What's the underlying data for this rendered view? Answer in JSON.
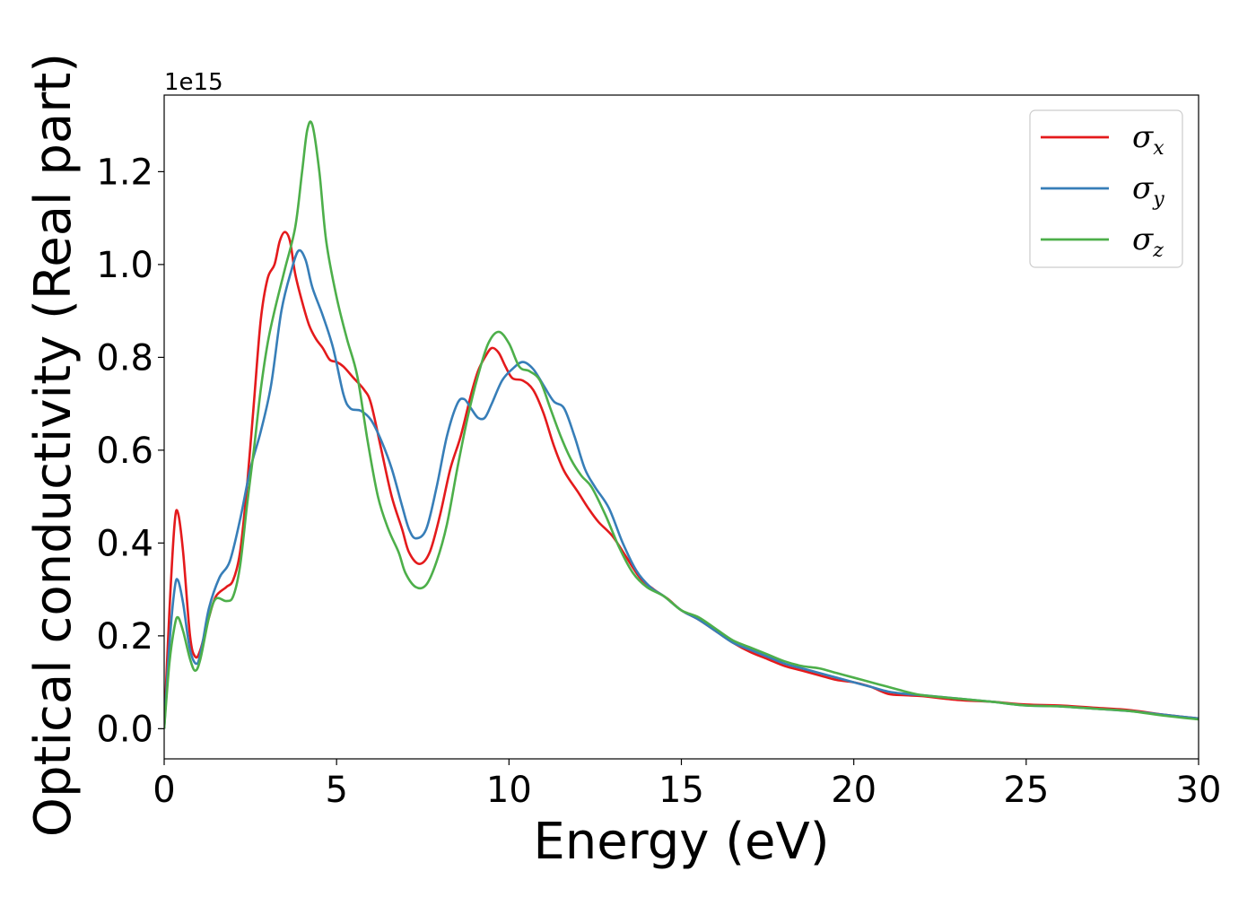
{
  "chart_data": {
    "type": "line",
    "title": "",
    "xlabel": "Energy (eV)",
    "ylabel": "Optical conductivity (Real part)",
    "y_offset_label": "1e15",
    "xlim": [
      0,
      30
    ],
    "ylim": [
      -0.065,
      1.365
    ],
    "x_ticks": [
      0,
      5,
      10,
      15,
      20,
      25,
      30
    ],
    "x_tick_labels": [
      "0",
      "5",
      "10",
      "15",
      "20",
      "25",
      "30"
    ],
    "y_ticks": [
      0.0,
      0.2,
      0.4,
      0.6,
      0.8,
      1.0,
      1.2
    ],
    "y_tick_labels": [
      "0.0",
      "0.2",
      "0.4",
      "0.6",
      "0.8",
      "1.0",
      "1.2"
    ],
    "grid": false,
    "legend_position": "top-right",
    "series": [
      {
        "name": "σx",
        "legend_base": "σ",
        "legend_sub": "x",
        "color": "#e41a1c",
        "points": [
          [
            0,
            0.0
          ],
          [
            0.15,
            0.25
          ],
          [
            0.3,
            0.44
          ],
          [
            0.4,
            0.465
          ],
          [
            0.55,
            0.38
          ],
          [
            0.75,
            0.2
          ],
          [
            0.9,
            0.155
          ],
          [
            1.05,
            0.17
          ],
          [
            1.3,
            0.24
          ],
          [
            1.5,
            0.285
          ],
          [
            1.8,
            0.305
          ],
          [
            2.0,
            0.32
          ],
          [
            2.2,
            0.38
          ],
          [
            2.4,
            0.52
          ],
          [
            2.6,
            0.7
          ],
          [
            2.8,
            0.88
          ],
          [
            3.0,
            0.97
          ],
          [
            3.2,
            1.0
          ],
          [
            3.35,
            1.05
          ],
          [
            3.5,
            1.07
          ],
          [
            3.65,
            1.05
          ],
          [
            3.8,
            0.98
          ],
          [
            4.0,
            0.92
          ],
          [
            4.2,
            0.87
          ],
          [
            4.4,
            0.84
          ],
          [
            4.6,
            0.82
          ],
          [
            4.8,
            0.795
          ],
          [
            5.0,
            0.79
          ],
          [
            5.2,
            0.78
          ],
          [
            5.5,
            0.755
          ],
          [
            5.8,
            0.73
          ],
          [
            6.0,
            0.7
          ],
          [
            6.3,
            0.6
          ],
          [
            6.6,
            0.5
          ],
          [
            6.9,
            0.43
          ],
          [
            7.1,
            0.38
          ],
          [
            7.4,
            0.355
          ],
          [
            7.7,
            0.38
          ],
          [
            8.0,
            0.46
          ],
          [
            8.3,
            0.56
          ],
          [
            8.6,
            0.63
          ],
          [
            8.9,
            0.72
          ],
          [
            9.1,
            0.77
          ],
          [
            9.3,
            0.8
          ],
          [
            9.5,
            0.82
          ],
          [
            9.7,
            0.81
          ],
          [
            9.9,
            0.78
          ],
          [
            10.1,
            0.755
          ],
          [
            10.4,
            0.75
          ],
          [
            10.7,
            0.73
          ],
          [
            11.0,
            0.68
          ],
          [
            11.3,
            0.61
          ],
          [
            11.6,
            0.555
          ],
          [
            12.0,
            0.51
          ],
          [
            12.3,
            0.475
          ],
          [
            12.6,
            0.445
          ],
          [
            13.0,
            0.415
          ],
          [
            13.4,
            0.37
          ],
          [
            13.8,
            0.325
          ],
          [
            14.2,
            0.3
          ],
          [
            14.6,
            0.28
          ],
          [
            15.0,
            0.255
          ],
          [
            15.5,
            0.235
          ],
          [
            16.0,
            0.21
          ],
          [
            16.5,
            0.185
          ],
          [
            17.0,
            0.165
          ],
          [
            17.5,
            0.15
          ],
          [
            18.0,
            0.135
          ],
          [
            18.5,
            0.125
          ],
          [
            19.0,
            0.115
          ],
          [
            19.5,
            0.105
          ],
          [
            20.0,
            0.1
          ],
          [
            20.5,
            0.09
          ],
          [
            21.0,
            0.075
          ],
          [
            21.5,
            0.072
          ],
          [
            22.0,
            0.07
          ],
          [
            23.0,
            0.062
          ],
          [
            24.0,
            0.058
          ],
          [
            25.0,
            0.052
          ],
          [
            26.0,
            0.05
          ],
          [
            27.0,
            0.045
          ],
          [
            28.0,
            0.04
          ],
          [
            29.0,
            0.03
          ],
          [
            30.0,
            0.022
          ]
        ]
      },
      {
        "name": "σy",
        "legend_base": "σ",
        "legend_sub": "y",
        "color": "#377eb8",
        "points": [
          [
            0,
            0.0
          ],
          [
            0.15,
            0.18
          ],
          [
            0.3,
            0.3
          ],
          [
            0.4,
            0.32
          ],
          [
            0.55,
            0.27
          ],
          [
            0.75,
            0.17
          ],
          [
            0.95,
            0.14
          ],
          [
            1.1,
            0.18
          ],
          [
            1.3,
            0.26
          ],
          [
            1.6,
            0.325
          ],
          [
            1.9,
            0.36
          ],
          [
            2.2,
            0.45
          ],
          [
            2.5,
            0.56
          ],
          [
            2.8,
            0.64
          ],
          [
            3.1,
            0.74
          ],
          [
            3.4,
            0.9
          ],
          [
            3.7,
            0.99
          ],
          [
            3.9,
            1.03
          ],
          [
            4.1,
            1.01
          ],
          [
            4.3,
            0.95
          ],
          [
            4.6,
            0.89
          ],
          [
            4.9,
            0.82
          ],
          [
            5.2,
            0.72
          ],
          [
            5.4,
            0.69
          ],
          [
            5.7,
            0.685
          ],
          [
            6.0,
            0.665
          ],
          [
            6.3,
            0.62
          ],
          [
            6.6,
            0.56
          ],
          [
            6.9,
            0.48
          ],
          [
            7.1,
            0.43
          ],
          [
            7.3,
            0.41
          ],
          [
            7.6,
            0.43
          ],
          [
            7.9,
            0.52
          ],
          [
            8.2,
            0.63
          ],
          [
            8.5,
            0.7
          ],
          [
            8.7,
            0.71
          ],
          [
            8.9,
            0.69
          ],
          [
            9.1,
            0.67
          ],
          [
            9.3,
            0.67
          ],
          [
            9.5,
            0.7
          ],
          [
            9.8,
            0.75
          ],
          [
            10.1,
            0.775
          ],
          [
            10.4,
            0.79
          ],
          [
            10.7,
            0.775
          ],
          [
            11.0,
            0.74
          ],
          [
            11.3,
            0.705
          ],
          [
            11.6,
            0.69
          ],
          [
            11.9,
            0.63
          ],
          [
            12.2,
            0.56
          ],
          [
            12.5,
            0.52
          ],
          [
            12.9,
            0.475
          ],
          [
            13.3,
            0.4
          ],
          [
            13.7,
            0.34
          ],
          [
            14.1,
            0.305
          ],
          [
            14.5,
            0.285
          ],
          [
            15.0,
            0.255
          ],
          [
            15.5,
            0.235
          ],
          [
            16.0,
            0.21
          ],
          [
            16.5,
            0.185
          ],
          [
            17.0,
            0.17
          ],
          [
            17.5,
            0.155
          ],
          [
            18.0,
            0.14
          ],
          [
            18.5,
            0.13
          ],
          [
            19.0,
            0.12
          ],
          [
            19.5,
            0.11
          ],
          [
            20.0,
            0.1
          ],
          [
            20.5,
            0.09
          ],
          [
            21.0,
            0.08
          ],
          [
            21.5,
            0.075
          ],
          [
            22.0,
            0.072
          ],
          [
            23.0,
            0.065
          ],
          [
            24.0,
            0.058
          ],
          [
            25.0,
            0.05
          ],
          [
            26.0,
            0.048
          ],
          [
            27.0,
            0.043
          ],
          [
            28.0,
            0.038
          ],
          [
            29.0,
            0.03
          ],
          [
            30.0,
            0.022
          ]
        ]
      },
      {
        "name": "σz",
        "legend_base": "σ",
        "legend_sub": "z",
        "color": "#4daf4a",
        "points": [
          [
            0,
            0.0
          ],
          [
            0.15,
            0.14
          ],
          [
            0.3,
            0.22
          ],
          [
            0.4,
            0.24
          ],
          [
            0.55,
            0.21
          ],
          [
            0.75,
            0.15
          ],
          [
            0.9,
            0.125
          ],
          [
            1.05,
            0.15
          ],
          [
            1.3,
            0.24
          ],
          [
            1.5,
            0.28
          ],
          [
            1.8,
            0.275
          ],
          [
            2.0,
            0.285
          ],
          [
            2.2,
            0.35
          ],
          [
            2.4,
            0.48
          ],
          [
            2.6,
            0.6
          ],
          [
            2.8,
            0.73
          ],
          [
            3.0,
            0.83
          ],
          [
            3.2,
            0.9
          ],
          [
            3.5,
            0.99
          ],
          [
            3.8,
            1.08
          ],
          [
            4.0,
            1.2
          ],
          [
            4.15,
            1.29
          ],
          [
            4.3,
            1.3
          ],
          [
            4.5,
            1.2
          ],
          [
            4.7,
            1.05
          ],
          [
            5.0,
            0.93
          ],
          [
            5.3,
            0.84
          ],
          [
            5.6,
            0.76
          ],
          [
            5.9,
            0.62
          ],
          [
            6.2,
            0.5
          ],
          [
            6.5,
            0.43
          ],
          [
            6.8,
            0.38
          ],
          [
            7.0,
            0.335
          ],
          [
            7.3,
            0.305
          ],
          [
            7.6,
            0.31
          ],
          [
            7.9,
            0.36
          ],
          [
            8.2,
            0.44
          ],
          [
            8.5,
            0.56
          ],
          [
            8.8,
            0.67
          ],
          [
            9.1,
            0.76
          ],
          [
            9.4,
            0.83
          ],
          [
            9.7,
            0.855
          ],
          [
            10.0,
            0.83
          ],
          [
            10.3,
            0.78
          ],
          [
            10.6,
            0.77
          ],
          [
            10.9,
            0.75
          ],
          [
            11.2,
            0.69
          ],
          [
            11.5,
            0.63
          ],
          [
            11.8,
            0.58
          ],
          [
            12.1,
            0.545
          ],
          [
            12.4,
            0.52
          ],
          [
            12.8,
            0.46
          ],
          [
            13.2,
            0.39
          ],
          [
            13.6,
            0.335
          ],
          [
            14.0,
            0.305
          ],
          [
            14.5,
            0.285
          ],
          [
            15.0,
            0.255
          ],
          [
            15.5,
            0.24
          ],
          [
            16.0,
            0.215
          ],
          [
            16.5,
            0.19
          ],
          [
            17.0,
            0.175
          ],
          [
            17.5,
            0.16
          ],
          [
            18.0,
            0.145
          ],
          [
            18.5,
            0.135
          ],
          [
            19.0,
            0.13
          ],
          [
            19.5,
            0.12
          ],
          [
            20.0,
            0.11
          ],
          [
            20.5,
            0.1
          ],
          [
            21.0,
            0.09
          ],
          [
            21.5,
            0.08
          ],
          [
            22.0,
            0.072
          ],
          [
            23.0,
            0.065
          ],
          [
            24.0,
            0.058
          ],
          [
            25.0,
            0.05
          ],
          [
            26.0,
            0.048
          ],
          [
            27.0,
            0.043
          ],
          [
            28.0,
            0.038
          ],
          [
            29.0,
            0.028
          ],
          [
            30.0,
            0.02
          ]
        ]
      }
    ]
  }
}
